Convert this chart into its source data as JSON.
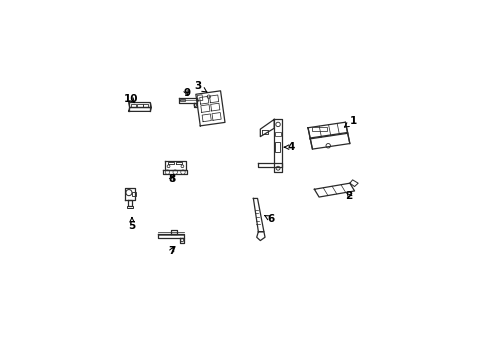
{
  "background_color": "#ffffff",
  "line_color": "#2a2a2a",
  "label_color": "#000000",
  "label_positions": {
    "1": [
      0.872,
      0.72,
      0.835,
      0.695
    ],
    "2": [
      0.855,
      0.45,
      0.84,
      0.468
    ],
    "3": [
      0.31,
      0.845,
      0.345,
      0.822
    ],
    "4": [
      0.645,
      0.625,
      0.618,
      0.625
    ],
    "5": [
      0.072,
      0.34,
      0.072,
      0.375
    ],
    "6": [
      0.575,
      0.365,
      0.548,
      0.38
    ],
    "7": [
      0.215,
      0.25,
      0.228,
      0.278
    ],
    "8": [
      0.215,
      0.51,
      0.228,
      0.535
    ],
    "9": [
      0.27,
      0.82,
      0.278,
      0.8
    ],
    "10": [
      0.068,
      0.8,
      0.09,
      0.775
    ]
  }
}
